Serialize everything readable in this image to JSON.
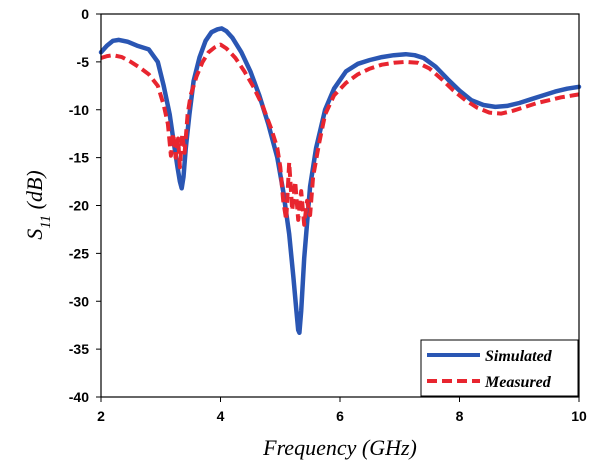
{
  "chart_data": {
    "type": "line",
    "xlabel": "Frequency (GHz)",
    "ylabel_main": "S",
    "ylabel_sub": "11",
    "ylabel_unit": " (dB)",
    "xlim": [
      2,
      10
    ],
    "ylim": [
      -40,
      0
    ],
    "xticks": [
      2,
      4,
      6,
      8,
      10
    ],
    "yticks": [
      0,
      -5,
      -10,
      -15,
      -20,
      -25,
      -30,
      -35,
      -40
    ],
    "grid": false,
    "legend_position": "bottom-right",
    "series": [
      {
        "name": "Simulated",
        "color": "#2a56b3",
        "style": "solid",
        "x": [
          2.0,
          2.1,
          2.2,
          2.3,
          2.45,
          2.6,
          2.8,
          2.95,
          3.05,
          3.15,
          3.22,
          3.28,
          3.32,
          3.35,
          3.38,
          3.42,
          3.48,
          3.55,
          3.65,
          3.75,
          3.85,
          3.95,
          4.02,
          4.1,
          4.2,
          4.35,
          4.5,
          4.65,
          4.8,
          4.95,
          5.05,
          5.15,
          5.22,
          5.27,
          5.3,
          5.32,
          5.35,
          5.4,
          5.5,
          5.6,
          5.75,
          5.9,
          6.1,
          6.3,
          6.5,
          6.7,
          6.9,
          7.1,
          7.25,
          7.4,
          7.6,
          7.8,
          8.0,
          8.2,
          8.4,
          8.6,
          8.8,
          9.0,
          9.2,
          9.4,
          9.6,
          9.8,
          10.0
        ],
        "y": [
          -4.0,
          -3.3,
          -2.8,
          -2.7,
          -2.9,
          -3.3,
          -3.7,
          -5.0,
          -7.5,
          -10.5,
          -13.5,
          -16.0,
          -17.5,
          -18.2,
          -17.0,
          -14.0,
          -10.5,
          -7.0,
          -4.5,
          -2.8,
          -1.9,
          -1.6,
          -1.5,
          -1.8,
          -2.5,
          -4.0,
          -6.0,
          -8.5,
          -11.5,
          -15.0,
          -18.5,
          -23.0,
          -27.5,
          -31.0,
          -33.0,
          -33.3,
          -31.0,
          -25.5,
          -18.0,
          -14.0,
          -10.0,
          -7.8,
          -6.0,
          -5.2,
          -4.8,
          -4.5,
          -4.3,
          -4.2,
          -4.3,
          -4.6,
          -5.5,
          -6.8,
          -8.0,
          -9.0,
          -9.5,
          -9.7,
          -9.6,
          -9.3,
          -8.9,
          -8.5,
          -8.1,
          -7.8,
          -7.6
        ]
      },
      {
        "name": "Measured",
        "color": "#e8252f",
        "style": "dashed",
        "x": [
          2.0,
          2.1,
          2.2,
          2.35,
          2.5,
          2.65,
          2.8,
          2.95,
          3.05,
          3.12,
          3.17,
          3.21,
          3.25,
          3.29,
          3.32,
          3.36,
          3.4,
          3.45,
          3.5,
          3.6,
          3.7,
          3.8,
          3.9,
          4.0,
          4.1,
          4.25,
          4.4,
          4.55,
          4.7,
          4.85,
          4.95,
          5.0,
          5.05,
          5.1,
          5.15,
          5.2,
          5.25,
          5.3,
          5.35,
          5.4,
          5.45,
          5.5,
          5.55,
          5.65,
          5.75,
          5.9,
          6.1,
          6.3,
          6.5,
          6.7,
          6.9,
          7.1,
          7.3,
          7.5,
          7.7,
          7.9,
          8.1,
          8.3,
          8.5,
          8.7,
          8.9,
          9.1,
          9.3,
          9.5,
          9.7,
          9.9,
          10.0
        ],
        "y": [
          -4.6,
          -4.4,
          -4.3,
          -4.5,
          -5.0,
          -5.6,
          -6.3,
          -7.5,
          -9.5,
          -11.5,
          -14.8,
          -12.5,
          -15.0,
          -13.0,
          -16.0,
          -12.5,
          -14.5,
          -10.5,
          -8.5,
          -6.5,
          -5.0,
          -4.0,
          -3.5,
          -3.2,
          -3.6,
          -4.6,
          -6.0,
          -7.6,
          -9.5,
          -12.0,
          -14.0,
          -16.0,
          -19.5,
          -21.5,
          -15.5,
          -20.5,
          -17.5,
          -21.5,
          -18.5,
          -22.0,
          -19.5,
          -21.0,
          -17.0,
          -13.5,
          -10.5,
          -8.5,
          -7.2,
          -6.3,
          -5.7,
          -5.3,
          -5.1,
          -5.0,
          -5.1,
          -5.7,
          -6.8,
          -8.0,
          -9.0,
          -9.8,
          -10.3,
          -10.4,
          -10.1,
          -9.7,
          -9.3,
          -9.0,
          -8.7,
          -8.5,
          -8.4
        ]
      }
    ]
  }
}
